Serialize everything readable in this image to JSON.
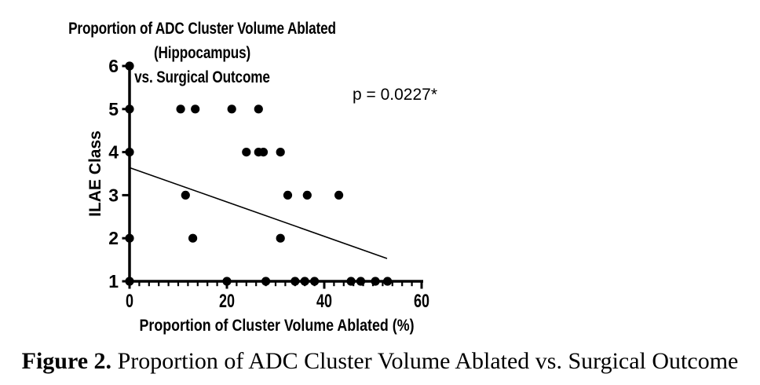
{
  "title": {
    "line1": "Proportion of ADC Cluster Volume Ablated (Hippocampus)",
    "line2": "vs. Surgical Outcome"
  },
  "annotation": {
    "p_value": "p = 0.0227*"
  },
  "axes": {
    "y_label": "ILAE Class",
    "x_label": "Proportion of Cluster Volume Ablated (%)"
  },
  "caption": {
    "label": "Figure 2.",
    "text": " Proportion of ADC Cluster Volume Ablated vs. Surgical Outcome"
  },
  "colors": {
    "foreground": "#000000",
    "background": "#ffffff"
  },
  "chart_data": {
    "type": "scatter",
    "title": "Proportion of ADC Cluster Volume Ablated (Hippocampus) vs. Surgical Outcome",
    "xlabel": "Proportion of Cluster Volume Ablated (%)",
    "ylabel": "ILAE Class",
    "xlim": [
      0,
      60
    ],
    "ylim": [
      1,
      6
    ],
    "x_major_ticks": [
      0,
      20,
      40,
      60
    ],
    "x_minor_tick_step": 2,
    "y_major_ticks": [
      1,
      2,
      3,
      4,
      5,
      6
    ],
    "grid": false,
    "legend": false,
    "marker": {
      "shape": "circle",
      "color": "#000000",
      "radius_px": 5.6
    },
    "points": [
      {
        "ilae_class": 6,
        "x_values": [
          0
        ]
      },
      {
        "ilae_class": 5,
        "x_values": [
          0,
          10.5,
          13.5,
          21,
          26.5
        ]
      },
      {
        "ilae_class": 4,
        "x_values": [
          0,
          24,
          26.5,
          27.5,
          31
        ]
      },
      {
        "ilae_class": 3,
        "x_values": [
          11.5,
          32.5,
          36.5,
          43
        ]
      },
      {
        "ilae_class": 2,
        "x_values": [
          0,
          13,
          31
        ]
      },
      {
        "ilae_class": 1,
        "x_values": [
          0,
          20,
          28,
          34,
          36,
          38,
          45.5,
          47.5,
          50.5,
          53
        ]
      }
    ],
    "regression_line": {
      "x1": 0,
      "y1": 3.64,
      "x2": 52.9,
      "y2": 1.53
    },
    "p_value_text": "p = 0.0227*"
  }
}
